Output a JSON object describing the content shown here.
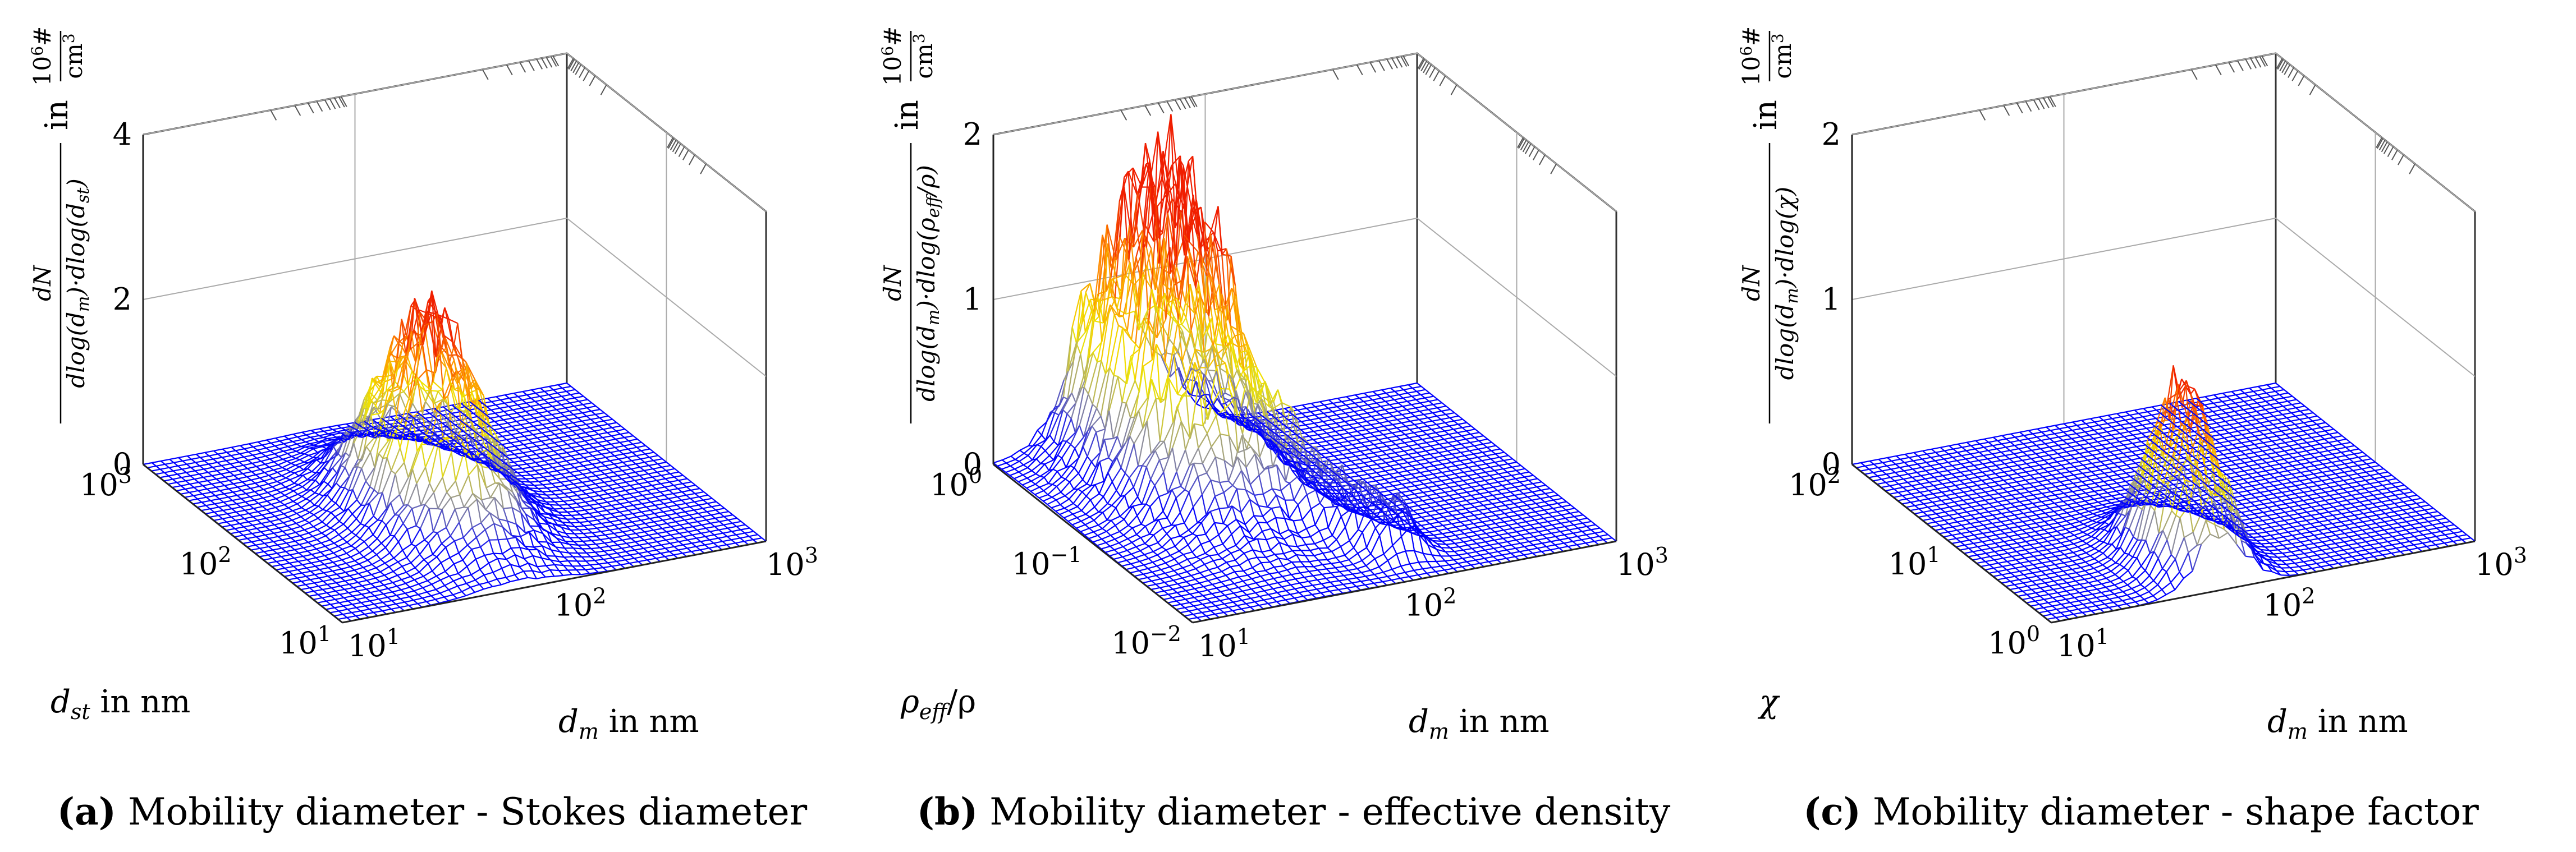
{
  "chart_data": [
    {
      "type": "surface3d",
      "title": "",
      "caption_letter": "(a)",
      "caption_text": "Mobility diameter - Stokes diameter",
      "xlabel_var": "d",
      "xlabel_sub": "m",
      "xlabel_unit": "in nm",
      "ylabel_var": "d",
      "ylabel_sub": "st",
      "ylabel_unit": "in nm",
      "zlabel_num": "dN",
      "zlabel_den": "dlog(d",
      "zlabel_den_sub1": "m",
      "zlabel_den_mid": ")·dlog(d",
      "zlabel_den_sub2": "st",
      "zlabel_den_end": ")",
      "zlabel_in": "in",
      "zlabel_unit_num": "10",
      "zlabel_unit_exp": "6",
      "zlabel_unit_hash": "#",
      "zlabel_unit_den": "cm",
      "zlabel_unit_den_exp": "3",
      "x_ticks": [
        {
          "base": "10",
          "exp": "1"
        },
        {
          "base": "10",
          "exp": "2"
        },
        {
          "base": "10",
          "exp": "3"
        }
      ],
      "y_ticks": [
        {
          "base": "10",
          "exp": "1"
        },
        {
          "base": "10",
          "exp": "2"
        },
        {
          "base": "10",
          "exp": "3"
        }
      ],
      "z_ticks": [
        "0",
        "2",
        "4"
      ],
      "zlim": [
        0,
        4
      ],
      "peak": {
        "x": 0.42,
        "y": 0.45,
        "height": 2.4,
        "sx": 0.09,
        "sy": 0.18
      },
      "noise": 0.18
    },
    {
      "type": "surface3d",
      "title": "",
      "caption_letter": "(b)",
      "caption_text": "Mobility diameter - effective density",
      "xlabel_var": "d",
      "xlabel_sub": "m",
      "xlabel_unit": "in nm",
      "ylabel_var": "ρ",
      "ylabel_sub": "eff",
      "ylabel_unit": "/ρ",
      "zlabel_num": "dN",
      "zlabel_den": "dlog(d",
      "zlabel_den_sub1": "m",
      "zlabel_den_mid": ")·dlog(ρ",
      "zlabel_den_sub2": "eff",
      "zlabel_den_end": "/ρ)",
      "zlabel_in": "in",
      "zlabel_unit_num": "10",
      "zlabel_unit_exp": "6",
      "zlabel_unit_hash": "#",
      "zlabel_unit_den": "cm",
      "zlabel_unit_den_exp": "3",
      "x_ticks": [
        {
          "base": "10",
          "exp": "1"
        },
        {
          "base": "10",
          "exp": "2"
        },
        {
          "base": "10",
          "exp": "3"
        }
      ],
      "y_ticks": [
        {
          "base": "10",
          "exp": "−2"
        },
        {
          "base": "10",
          "exp": "−1"
        },
        {
          "base": "10",
          "exp": "0"
        }
      ],
      "z_ticks": [
        "0",
        "1",
        "2"
      ],
      "zlim": [
        0,
        2
      ],
      "peak": {
        "x": 0.3,
        "y": 0.75,
        "height": 1.55,
        "sx": 0.1,
        "sy": 0.22
      },
      "ridge": {
        "x0": 0.2,
        "x1": 0.55,
        "y0": 0.95,
        "y1": 0.15,
        "height": 0.35
      },
      "noise": 0.22
    },
    {
      "type": "surface3d",
      "title": "",
      "caption_letter": "(c)",
      "caption_text": "Mobility diameter - shape factor",
      "xlabel_var": "d",
      "xlabel_sub": "m",
      "xlabel_unit": "in nm",
      "ylabel_var": "χ",
      "ylabel_sub": "",
      "ylabel_unit": "",
      "zlabel_num": "dN",
      "zlabel_den": "dlog(d",
      "zlabel_den_sub1": "m",
      "zlabel_den_mid": ")·dlog(χ",
      "zlabel_den_sub2": "",
      "zlabel_den_end": ")",
      "zlabel_in": "in",
      "zlabel_unit_num": "10",
      "zlabel_unit_exp": "6",
      "zlabel_unit_hash": "#",
      "zlabel_unit_den": "cm",
      "zlabel_unit_den_exp": "3",
      "x_ticks": [
        {
          "base": "10",
          "exp": "1"
        },
        {
          "base": "10",
          "exp": "2"
        },
        {
          "base": "10",
          "exp": "3"
        }
      ],
      "y_ticks": [
        {
          "base": "10",
          "exp": "0"
        },
        {
          "base": "10",
          "exp": "1"
        },
        {
          "base": "10",
          "exp": "2"
        }
      ],
      "z_ticks": [
        "0",
        "1",
        "2"
      ],
      "zlim": [
        0,
        2
      ],
      "peak": {
        "x": 0.4,
        "y": 0.18,
        "height": 1.05,
        "sx": 0.06,
        "sy": 0.12
      },
      "noise": 0.2
    }
  ]
}
